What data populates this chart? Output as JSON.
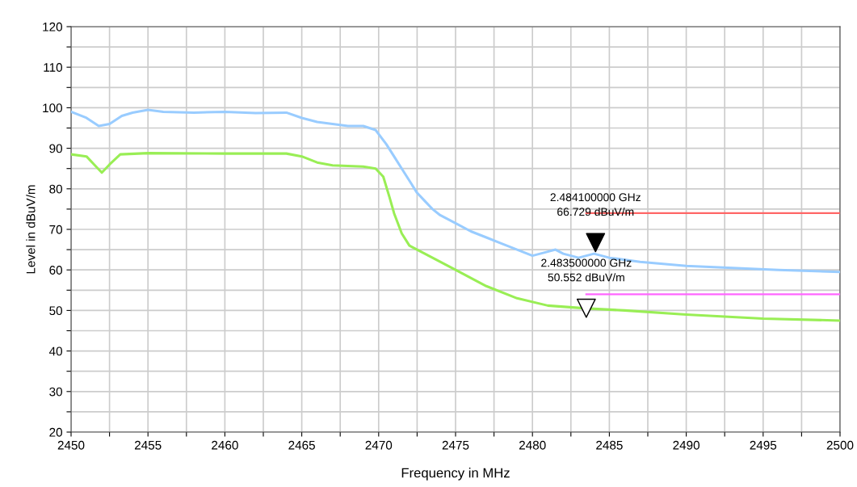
{
  "chart_data": {
    "type": "line",
    "xlabel": "Frequency in MHz",
    "ylabel": "Level in dBuV/m",
    "xlim": [
      2450,
      2500
    ],
    "ylim": [
      20,
      120
    ],
    "xticks": [
      2450,
      {
        "value": 2452.5,
        "label": null
      },
      2455,
      {
        "value": 2457.5,
        "label": null
      },
      2460,
      {
        "value": 2462.5,
        "label": null
      },
      2465,
      {
        "value": 2467.5,
        "label": null
      },
      2470,
      {
        "value": 2472.5,
        "label": null
      },
      2475,
      {
        "value": 2477.5,
        "label": null
      },
      2480,
      {
        "value": 2482.5,
        "label": null
      },
      2485,
      {
        "value": 2487.5,
        "label": null
      },
      2490,
      {
        "value": 2492.5,
        "label": null
      },
      2495,
      {
        "value": 2497.5,
        "label": null
      },
      2500
    ],
    "yticks": [
      20,
      {
        "value": 25,
        "label": null
      },
      30,
      {
        "value": 35,
        "label": null
      },
      40,
      {
        "value": 45,
        "label": null
      },
      50,
      {
        "value": 55,
        "label": null
      },
      60,
      {
        "value": 65,
        "label": null
      },
      70,
      {
        "value": 75,
        "label": null
      },
      80,
      {
        "value": 85,
        "label": null
      },
      90,
      {
        "value": 95,
        "label": null
      },
      100,
      {
        "value": 105,
        "label": null
      },
      110,
      {
        "value": 115,
        "label": null
      },
      120
    ],
    "grid": true,
    "legend": false,
    "series": [
      {
        "color": "#99ccff",
        "x": [
          2450,
          2451,
          2451.8,
          2452.5,
          2453.3,
          2454,
          2455,
          2456,
          2458,
          2460,
          2462,
          2464,
          2465,
          2466,
          2467,
          2468,
          2469,
          2469.8,
          2470.5,
          2471,
          2471.5,
          2472,
          2472.5,
          2473,
          2473.5,
          2474,
          2475,
          2476,
          2477,
          2478,
          2479,
          2480,
          2481,
          2481.5,
          2482,
          2483,
          2484,
          2485,
          2487,
          2490,
          2493,
          2496,
          2500
        ],
        "values": [
          99,
          97.5,
          95.5,
          96,
          98,
          98.8,
          99.5,
          99,
          98.8,
          99,
          98.7,
          98.8,
          97.5,
          96.5,
          96,
          95.5,
          95.5,
          94.5,
          91,
          88,
          85,
          82,
          79,
          77,
          75,
          73.5,
          71.5,
          69.5,
          68,
          66.5,
          65,
          63.5,
          64.5,
          65,
          64,
          63,
          64,
          63,
          62,
          61,
          60.5,
          60,
          59.5
        ]
      },
      {
        "color": "#99ee55",
        "x": [
          2450,
          2451,
          2451.5,
          2452,
          2452.5,
          2453.2,
          2455,
          2460,
          2464,
          2465,
          2466,
          2467,
          2469,
          2469.8,
          2470.3,
          2470.7,
          2471,
          2471.5,
          2472,
          2473,
          2475,
          2477,
          2479,
          2481,
          2483.5,
          2486,
          2490,
          2495,
          2500
        ],
        "values": [
          88.5,
          88,
          86,
          84,
          86,
          88.5,
          88.8,
          88.7,
          88.7,
          88,
          86.5,
          85.8,
          85.5,
          85,
          83,
          78,
          74,
          69,
          66,
          64,
          60,
          56,
          53,
          51.2,
          50.5,
          50,
          49,
          48,
          47.5
        ]
      },
      {
        "color": "#ff6666",
        "x": [
          2483.5,
          2500
        ],
        "values": [
          74,
          74
        ]
      },
      {
        "color": "#ff66ff",
        "x": [
          2483.5,
          2500
        ],
        "values": [
          54,
          54
        ]
      },
      {
        "type": "scatter",
        "marker": "triangle",
        "color": "#000000",
        "x": [
          2484.1
        ],
        "values": [
          66.729
        ]
      },
      {
        "type": "scatter",
        "marker": "triangle",
        "color": "#ffffff",
        "x": [
          2483.5
        ],
        "values": [
          50.552
        ]
      }
    ],
    "annotations": [
      {
        "text": "2.484100000 GHz\n66.729 dBuV/m",
        "x": 2484.1,
        "y": 66.729
      },
      {
        "text": "2.483500000 GHz\n50.552 dBuV/m",
        "x": 2483.5,
        "y": 50.552
      }
    ]
  }
}
